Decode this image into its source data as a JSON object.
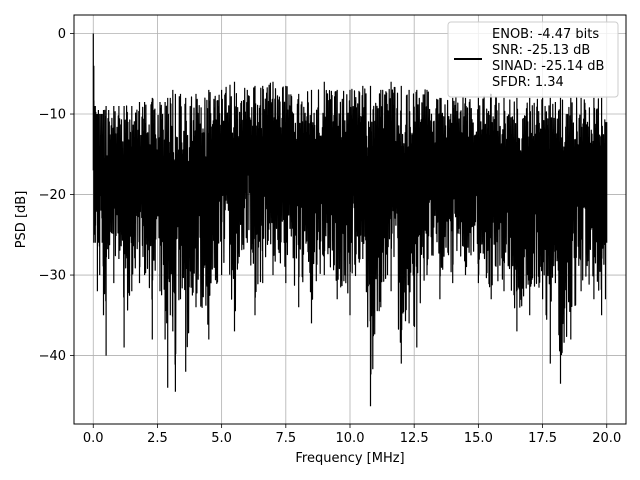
{
  "chart_data": {
    "type": "line",
    "xlabel": "Frequency [MHz]",
    "ylabel": "PSD [dB]",
    "xlim": [
      -0.75,
      20.75
    ],
    "ylim": [
      -48.5,
      2.3
    ],
    "xticks": [
      0.0,
      2.5,
      5.0,
      7.5,
      10.0,
      12.5,
      15.0,
      17.5,
      20.0
    ],
    "xtick_labels": [
      "0.0",
      "2.5",
      "5.0",
      "7.5",
      "10.0",
      "12.5",
      "15.0",
      "17.5",
      "20.0"
    ],
    "yticks": [
      0,
      -10,
      -20,
      -30,
      -40
    ],
    "ytick_labels": [
      "0",
      "−10",
      "−20",
      "−30",
      "−40"
    ],
    "grid": true,
    "legend_position": "top-right",
    "legend_lines": [
      "ENOB: -4.47 bits",
      "SNR: -25.13 dB",
      "SINAD: -25.14 dB",
      "SFDR: 1.34"
    ],
    "series": [
      {
        "color": "#000000",
        "x": [
          0.0,
          0.02,
          0.04,
          0.06,
          0.08,
          0.12,
          0.16,
          0.2,
          0.25,
          0.3,
          0.35,
          0.4,
          0.5,
          0.6,
          0.8,
          1.0,
          1.2,
          1.5,
          1.8,
          2.0,
          2.3,
          2.6,
          2.8,
          2.9,
          3.0,
          3.1,
          3.2,
          3.4,
          3.6,
          4.0,
          4.5,
          5.0,
          5.5,
          6.0,
          6.3,
          6.6,
          7.0,
          7.5,
          8.0,
          8.5,
          9.0,
          9.5,
          10.0,
          10.5,
          10.8,
          11.2,
          11.6,
          12.0,
          12.3,
          12.6,
          13.0,
          13.5,
          14.0,
          14.5,
          15.0,
          15.5,
          16.0,
          16.5,
          17.0,
          17.5,
          17.8,
          18.0,
          18.2,
          18.6,
          19.0,
          19.5,
          19.8,
          19.95,
          20.0
        ],
        "upper": [
          0.0,
          -4.0,
          -10.0,
          -9.0,
          -9.0,
          -10.0,
          -10.0,
          -9.5,
          -10.0,
          -10.0,
          -10.0,
          -9.5,
          -9.0,
          -9.5,
          -9.0,
          -9.0,
          -9.0,
          -9.0,
          -8.5,
          -8.5,
          -8.0,
          -8.5,
          -8.5,
          -8.0,
          -8.0,
          -7.0,
          -7.5,
          -7.5,
          -8.0,
          -7.5,
          -7.0,
          -7.0,
          -6.0,
          -7.0,
          -6.5,
          -6.5,
          -6.0,
          -6.5,
          -7.5,
          -7.0,
          -6.0,
          -7.0,
          -7.0,
          -6.5,
          -6.5,
          -7.0,
          -6.0,
          -6.5,
          -7.0,
          -7.0,
          -7.0,
          -8.0,
          -8.0,
          -8.0,
          -8.0,
          -7.5,
          -8.0,
          -8.0,
          -8.0,
          -8.0,
          -8.0,
          -8.5,
          -8.0,
          -8.0,
          -8.0,
          -8.0,
          -8.0,
          -11.0,
          -11.0
        ],
        "lower": [
          -17.0,
          -26.0,
          -20.0,
          -25.0,
          -26.0,
          -22.0,
          -32.0,
          -26.0,
          -30.0,
          -22.0,
          -26.0,
          -35.0,
          -40.0,
          -28.0,
          -31.0,
          -28.0,
          -39.0,
          -32.0,
          -31.0,
          -30.0,
          -38.0,
          -32.0,
          -38.0,
          -44.0,
          -35.0,
          -37.0,
          -44.5,
          -33.0,
          -42.0,
          -34.0,
          -38.0,
          -30.0,
          -37.0,
          -26.0,
          -35.0,
          -31.0,
          -30.0,
          -31.0,
          -34.0,
          -36.0,
          -30.0,
          -33.0,
          -35.0,
          -28.0,
          -46.3,
          -34.0,
          -32.0,
          -41.0,
          -36.0,
          -39.0,
          -30.0,
          -33.0,
          -31.0,
          -30.0,
          -31.0,
          -33.0,
          -32.0,
          -37.0,
          -35.0,
          -33.0,
          -41.0,
          -31.0,
          -43.5,
          -38.0,
          -32.0,
          -33.0,
          -35.0,
          -33.0,
          -26.0
        ]
      }
    ]
  }
}
